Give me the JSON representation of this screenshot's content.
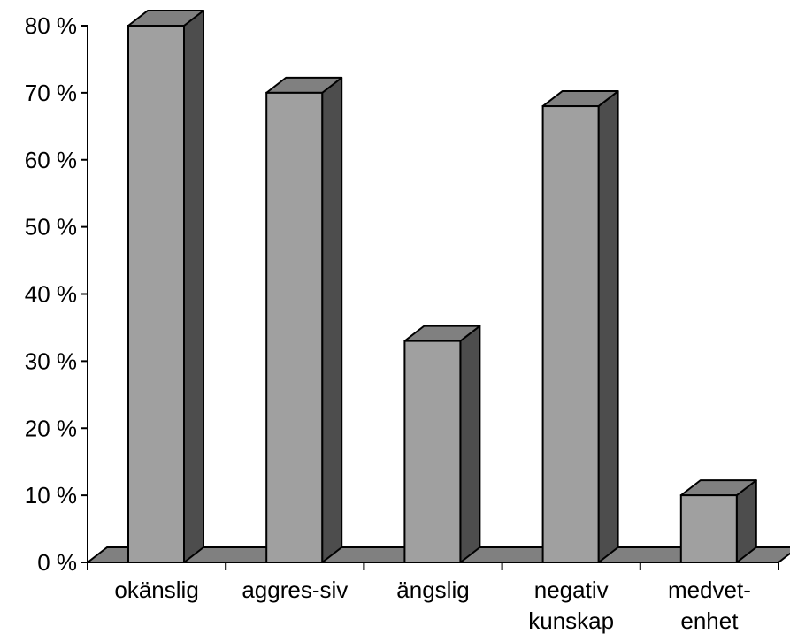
{
  "chart_data": {
    "type": "bar",
    "style": "3d",
    "categories": [
      [
        "okänslig"
      ],
      [
        "aggres-siv"
      ],
      [
        "ängslig"
      ],
      [
        "negativ",
        "kunskap"
      ],
      [
        "medvet-",
        "enhet"
      ]
    ],
    "values": [
      80,
      70,
      33,
      68,
      10
    ],
    "ylim": [
      0,
      80
    ],
    "yticks": [
      0,
      10,
      20,
      30,
      40,
      50,
      60,
      70,
      80
    ],
    "ytick_labels": [
      "0 %",
      "10 %",
      "20 %",
      "30 %",
      "40 %",
      "50 %",
      "60 %",
      "70 %",
      "80 %"
    ],
    "title": "",
    "xlabel": "",
    "ylabel": "",
    "grid": false,
    "legend": "none",
    "colors": {
      "bar_front": "#a0a0a0",
      "bar_top": "#808080",
      "bar_side": "#4d4d4d",
      "floor": "#808080",
      "axis": "#000000"
    }
  }
}
